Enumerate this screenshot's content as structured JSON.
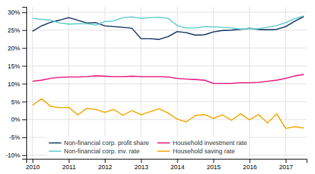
{
  "chart_data": {
    "type": "line",
    "x": [
      2010.0,
      2010.25,
      2010.5,
      2010.75,
      2011.0,
      2011.25,
      2011.5,
      2011.75,
      2012.0,
      2012.25,
      2012.5,
      2012.75,
      2013.0,
      2013.25,
      2013.5,
      2013.75,
      2014.0,
      2014.25,
      2014.5,
      2014.75,
      2015.0,
      2015.25,
      2015.5,
      2015.75,
      2016.0,
      2016.25,
      2016.5,
      2016.75,
      2017.0,
      2017.25,
      2017.5
    ],
    "series": [
      {
        "name": "Non-financial corp. profit share",
        "color": "#1a3a6b",
        "values": [
          0.247,
          0.262,
          0.272,
          0.278,
          0.285,
          0.278,
          0.27,
          0.271,
          0.262,
          0.26,
          0.258,
          0.255,
          0.226,
          0.226,
          0.224,
          0.232,
          0.246,
          0.243,
          0.236,
          0.237,
          0.245,
          0.249,
          0.25,
          0.252,
          0.255,
          0.252,
          0.251,
          0.252,
          0.26,
          0.275,
          0.288
        ]
      },
      {
        "name": "Non-financial corp. inv. rate",
        "color": "#5ecfcb",
        "values": [
          0.283,
          0.28,
          0.278,
          0.27,
          0.267,
          0.268,
          0.268,
          0.264,
          0.274,
          0.276,
          0.285,
          0.287,
          0.283,
          0.285,
          0.286,
          0.283,
          0.263,
          0.256,
          0.256,
          0.26,
          0.259,
          0.258,
          0.256,
          0.253,
          0.254,
          0.254,
          0.258,
          0.263,
          0.271,
          0.282,
          0.29
        ]
      },
      {
        "name": "Household investment rate",
        "color": "#e8197e",
        "values": [
          0.107,
          0.11,
          0.115,
          0.118,
          0.119,
          0.119,
          0.12,
          0.122,
          0.121,
          0.12,
          0.12,
          0.121,
          0.12,
          0.12,
          0.12,
          0.119,
          0.115,
          0.113,
          0.112,
          0.11,
          0.101,
          0.101,
          0.101,
          0.103,
          0.103,
          0.104,
          0.107,
          0.11,
          0.115,
          0.122,
          0.126
        ]
      },
      {
        "name": "Household saving rate",
        "color": "#f5a800",
        "values": [
          0.04,
          0.058,
          0.037,
          0.033,
          0.034,
          0.013,
          0.031,
          0.028,
          0.02,
          0.028,
          0.012,
          0.025,
          0.013,
          0.022,
          0.03,
          0.018,
          0.001,
          -0.007,
          0.011,
          0.014,
          0.003,
          0.013,
          -0.002,
          0.016,
          -0.001,
          0.014,
          -0.01,
          0.016,
          -0.025,
          -0.02,
          -0.024
        ]
      }
    ],
    "xlim": [
      2009.83,
      2017.58
    ],
    "xticks": [
      2010,
      2011,
      2012,
      2013,
      2014,
      2015,
      2016,
      2017
    ],
    "ylim": [
      -0.11,
      0.315
    ],
    "yticks": [
      {
        "value": -0.1,
        "label": "-10%"
      },
      {
        "value": -0.05,
        "label": "-5%"
      },
      {
        "value": 0.0,
        "label": "0%"
      },
      {
        "value": 0.05,
        "label": "5%"
      },
      {
        "value": 0.1,
        "label": "10%"
      },
      {
        "value": 0.15,
        "label": "15%"
      },
      {
        "value": 0.2,
        "label": "20%"
      },
      {
        "value": 0.25,
        "label": "25%"
      },
      {
        "value": 0.3,
        "label": "30%"
      }
    ],
    "grid": true,
    "legend": "lower left"
  }
}
